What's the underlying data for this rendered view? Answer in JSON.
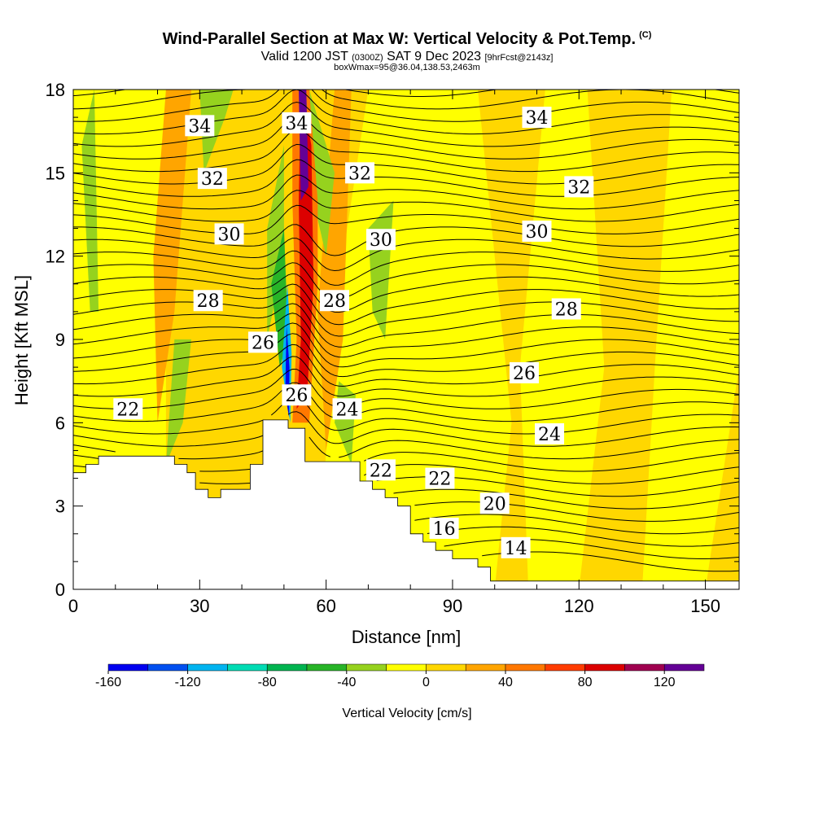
{
  "header": {
    "title": "Wind-Parallel Section at Max W: Vertical Velocity & Pot.Temp.",
    "title_tag": "(C)",
    "valid_prefix": "Valid 1200 JST",
    "valid_utc": "(0300Z)",
    "valid_date": "SAT 9 Dec 2023",
    "forecast": "[9hrFcst@2143z]",
    "box_info": "boxWmax=95@36.04,138.53,2463m"
  },
  "chart_data": {
    "type": "heatmap",
    "xlabel": "Distance [nm]",
    "ylabel": "Height [Kft MSL]",
    "xlim": [
      0,
      158
    ],
    "ylim": [
      0,
      18
    ],
    "x_ticks": [
      "0",
      "30",
      "60",
      "90",
      "120",
      "150"
    ],
    "y_ticks": [
      "0",
      "3",
      "6",
      "9",
      "12",
      "15",
      "18"
    ],
    "colorbar": {
      "label": "Vertical Velocity [cm/s]",
      "ticks": [
        "-160",
        "-120",
        "-80",
        "-40",
        "0",
        "40",
        "80",
        "120"
      ],
      "range": [
        -160,
        140
      ],
      "colors": [
        "#0000f0",
        "#0050f0",
        "#00b4f0",
        "#00dcb4",
        "#00b450",
        "#28b428",
        "#96d21e",
        "#ffff00",
        "#ffd700",
        "#ffa500",
        "#ff7800",
        "#ff3c00",
        "#dc0000",
        "#a00050",
        "#640096"
      ]
    },
    "fill_colors": {
      "background": "#ffd700",
      "weak_updraft": "#ffff00",
      "moderate_updraft": "#ffa500",
      "downdraft": "#96d21e",
      "strong_downdraft": "#28b428",
      "terrain": "#ffffff"
    },
    "max_w": {
      "value_cms": 95,
      "lat": 36.04,
      "lon": 138.53,
      "height_m": 2463
    },
    "terrain": [
      [
        0,
        4.2
      ],
      [
        3,
        4.2
      ],
      [
        3,
        4.5
      ],
      [
        6,
        4.5
      ],
      [
        6,
        4.8
      ],
      [
        9,
        4.8
      ],
      [
        9,
        4.8
      ],
      [
        24,
        4.8
      ],
      [
        24,
        4.5
      ],
      [
        27,
        4.5
      ],
      [
        27,
        4.2
      ],
      [
        29,
        4.2
      ],
      [
        29,
        3.6
      ],
      [
        32,
        3.6
      ],
      [
        32,
        3.3
      ],
      [
        35,
        3.3
      ],
      [
        35,
        3.6
      ],
      [
        42,
        3.6
      ],
      [
        42,
        4.5
      ],
      [
        45,
        4.5
      ],
      [
        45,
        6.1
      ],
      [
        51,
        6.1
      ],
      [
        51,
        5.8
      ],
      [
        55,
        5.8
      ],
      [
        55,
        4.6
      ],
      [
        68,
        4.6
      ],
      [
        68,
        3.9
      ],
      [
        71,
        3.9
      ],
      [
        71,
        3.6
      ],
      [
        74,
        3.6
      ],
      [
        74,
        3.3
      ],
      [
        77,
        3.3
      ],
      [
        77,
        3.0
      ],
      [
        80,
        3.0
      ],
      [
        80,
        2.0
      ],
      [
        83,
        2.0
      ],
      [
        83,
        1.7
      ],
      [
        86,
        1.7
      ],
      [
        86,
        1.4
      ],
      [
        90,
        1.4
      ],
      [
        90,
        1.1
      ],
      [
        96,
        1.1
      ],
      [
        96,
        0.8
      ],
      [
        99,
        0.8
      ],
      [
        99,
        0.3
      ],
      [
        158,
        0.3
      ]
    ],
    "isentropes": [
      {
        "theta": "14",
        "label_at": [
          105,
          1.5
        ]
      },
      {
        "theta": "16",
        "label_at": [
          88,
          2.2
        ]
      },
      {
        "theta": "20",
        "label_at": [
          100,
          3.1
        ]
      },
      {
        "theta": "22",
        "label_at": [
          13,
          6.5
        ]
      },
      {
        "theta": "22",
        "label_at": [
          73,
          4.3
        ]
      },
      {
        "theta": "22",
        "label_at": [
          87,
          4.0
        ]
      },
      {
        "theta": "24",
        "label_at": [
          65,
          6.5
        ]
      },
      {
        "theta": "24",
        "label_at": [
          113,
          5.6
        ]
      },
      {
        "theta": "26",
        "label_at": [
          45,
          8.9
        ]
      },
      {
        "theta": "26",
        "label_at": [
          53,
          7.0
        ]
      },
      {
        "theta": "26",
        "label_at": [
          107,
          7.8
        ]
      },
      {
        "theta": "28",
        "label_at": [
          32,
          10.4
        ]
      },
      {
        "theta": "28",
        "label_at": [
          62,
          10.4
        ]
      },
      {
        "theta": "28",
        "label_at": [
          117,
          10.1
        ]
      },
      {
        "theta": "30",
        "label_at": [
          37,
          12.8
        ]
      },
      {
        "theta": "30",
        "label_at": [
          73,
          12.6
        ]
      },
      {
        "theta": "30",
        "label_at": [
          110,
          12.9
        ]
      },
      {
        "theta": "32",
        "label_at": [
          33,
          14.8
        ]
      },
      {
        "theta": "32",
        "label_at": [
          68,
          15.0
        ]
      },
      {
        "theta": "32",
        "label_at": [
          120,
          14.5
        ]
      },
      {
        "theta": "34",
        "label_at": [
          30,
          16.7
        ]
      },
      {
        "theta": "34",
        "label_at": [
          53,
          16.8
        ]
      },
      {
        "theta": "34",
        "label_at": [
          110,
          17.0
        ]
      }
    ]
  }
}
